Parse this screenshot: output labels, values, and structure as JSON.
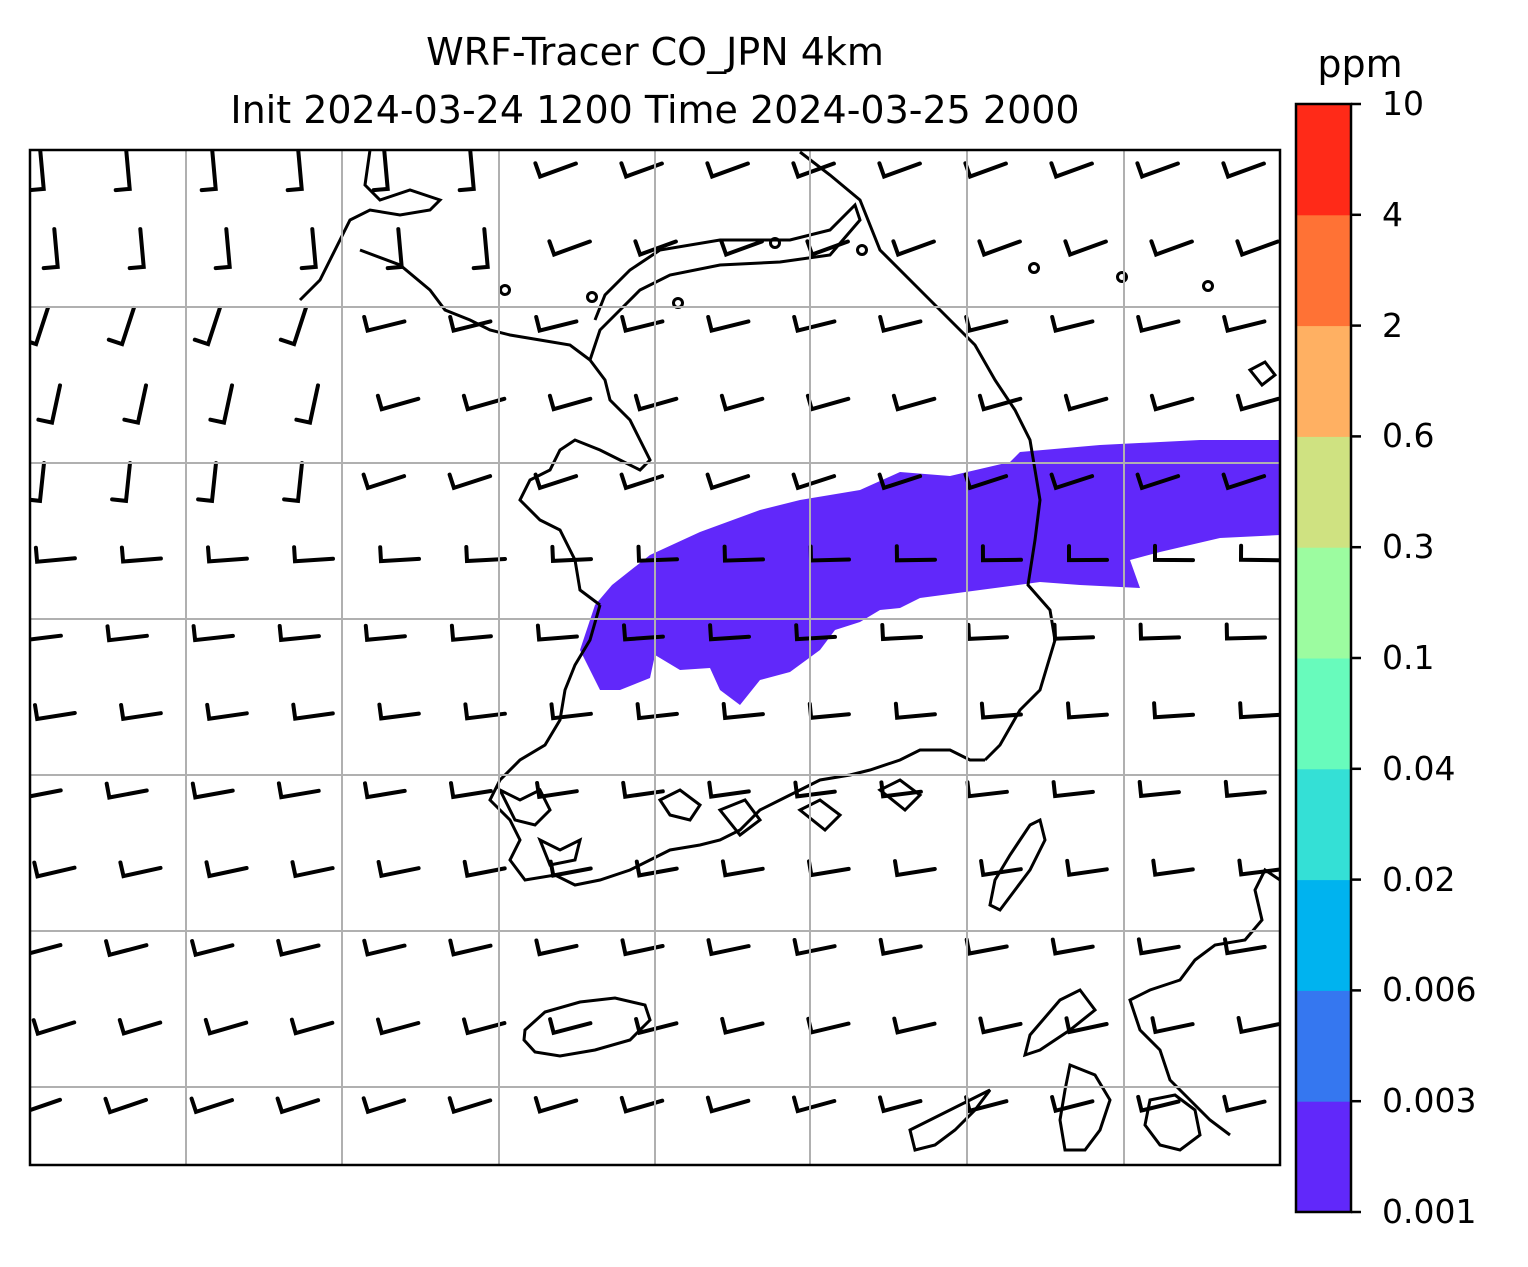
{
  "title": {
    "line1": "WRF-Tracer CO_JPN 4km",
    "line2": "Init 2024-03-24 1200 Time 2024-03-25 2000"
  },
  "colorbar": {
    "unit": "ppm",
    "levels": [
      "0.001",
      "0.003",
      "0.006",
      "0.02",
      "0.04",
      "0.1",
      "0.3",
      "0.6",
      "2",
      "4",
      "10"
    ],
    "colors": [
      "#6128fa",
      "#3577f0",
      "#00b3ef",
      "#34e0d6",
      "#68fbbc",
      "#9cfca0",
      "#cfe281",
      "#ffb062",
      "#ff7235",
      "#ff2a18"
    ]
  },
  "map": {
    "field": "CO tracer concentration",
    "plume_color": "#6128fa",
    "plume_level": "0.001-0.003 ppm",
    "wind_barbs": "prevailing westerly to north-westerly flow",
    "gridlines": true
  }
}
